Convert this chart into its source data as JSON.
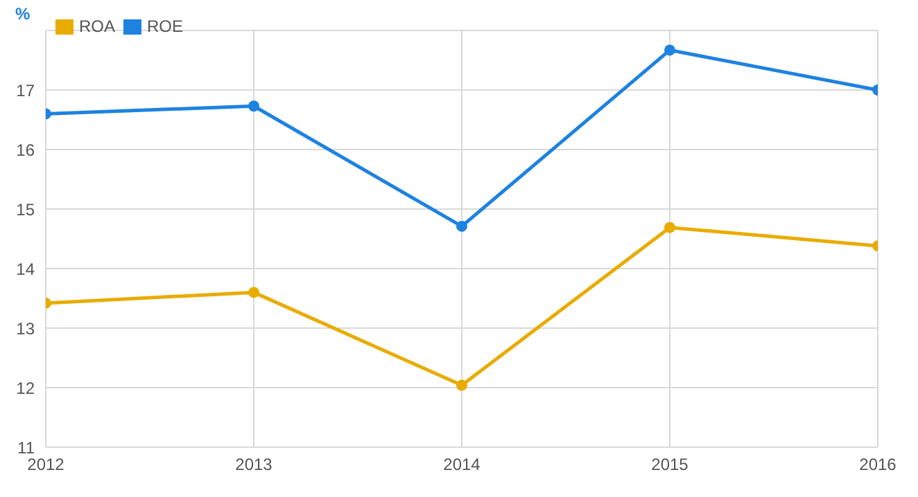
{
  "chart_data": {
    "type": "line",
    "ylabel": "%",
    "x": [
      2012,
      2013,
      2014,
      2015,
      2016
    ],
    "xlim": [
      2012,
      2016
    ],
    "xticks": [
      2012,
      2013,
      2014,
      2015,
      2016
    ],
    "ylim": [
      11,
      18
    ],
    "yticks": [
      11,
      12,
      13,
      14,
      15,
      16,
      17,
      {
        "value": 18,
        "label": null
      }
    ],
    "grid": true,
    "legend": "top left",
    "marker": "circle",
    "line_style": "solid",
    "series": [
      {
        "name": "ROA",
        "color": "#e8ac00",
        "values": [
          13.42,
          13.6,
          12.04,
          14.69,
          14.38
        ]
      },
      {
        "name": "ROE",
        "color": "#1e82e0",
        "values": [
          16.6,
          16.73,
          14.71,
          17.67,
          17.0
        ]
      }
    ]
  }
}
